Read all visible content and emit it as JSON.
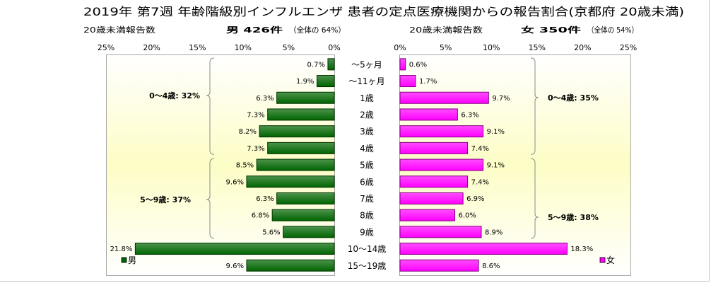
{
  "chart_data": {
    "type": "bar",
    "orientation": "horizontal",
    "title": "2019年 第7週 年齢階級別インフルエンザ 患者の定点医療機関からの報告割合(京都府 20歳未満)",
    "categories": [
      "～5ヶ月",
      "～11ヶ月",
      "1歳",
      "2歳",
      "3歳",
      "4歳",
      "5歳",
      "6歳",
      "7歳",
      "8歳",
      "9歳",
      "10～14歳",
      "15～19歳"
    ],
    "value_unit": "%",
    "xlim": [
      0,
      25
    ],
    "ticks": [
      "0%",
      "5%",
      "10%",
      "15%",
      "20%",
      "25%"
    ],
    "grid": false,
    "series": [
      {
        "name": "男",
        "color": "#006400",
        "report_label": "20歳未満報告数",
        "count_label": "男 426件",
        "share_label": "（全体の 64%）",
        "values": [
          0.7,
          1.9,
          6.3,
          7.3,
          8.2,
          7.3,
          8.5,
          9.6,
          6.3,
          6.8,
          5.6,
          21.8,
          9.6
        ]
      },
      {
        "name": "女",
        "color": "#ff00ff",
        "report_label": "20歳未満報告数",
        "count_label": "女 350件",
        "share_label": "（全体の 54%）",
        "values": [
          0.6,
          1.7,
          9.7,
          6.3,
          9.1,
          7.4,
          9.1,
          7.4,
          6.9,
          6.0,
          8.9,
          18.3,
          8.6
        ]
      }
    ],
    "group_annotations": [
      {
        "series": "男",
        "from": "～5ヶ月",
        "to": "4歳",
        "label": "0～4歳: 32%"
      },
      {
        "series": "男",
        "from": "5歳",
        "to": "9歳",
        "label": "5～9歳: 37%"
      },
      {
        "series": "女",
        "from": "～5ヶ月",
        "to": "4歳",
        "label": "0～4歳: 35%"
      },
      {
        "series": "女",
        "from": "5歳",
        "to": "9歳",
        "label": "5～9歳: 38%"
      }
    ],
    "legend": {
      "placement": [
        "bottom-left",
        "bottom-right"
      ]
    }
  }
}
